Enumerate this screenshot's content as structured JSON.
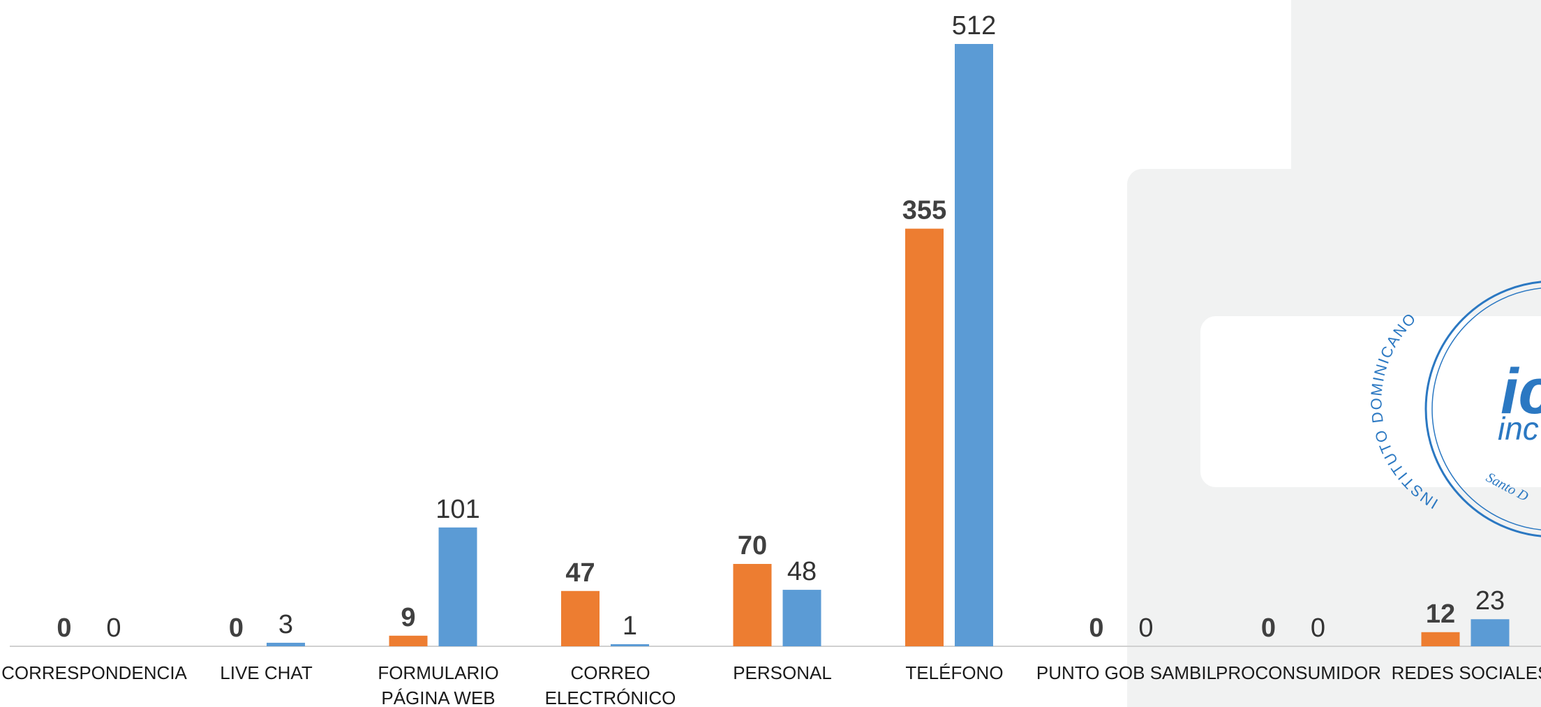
{
  "chart_data": {
    "type": "bar",
    "categories": [
      [
        "CORRESPONDENCIA"
      ],
      [
        "LIVE CHAT"
      ],
      [
        "FORMULARIO",
        "PÁGINA WEB"
      ],
      [
        "CORREO",
        "ELECTRÓNICO"
      ],
      [
        "PERSONAL"
      ],
      [
        "TELÉFONO"
      ],
      [
        "PUNTO GOB SAMBIL"
      ],
      [
        "PROCONSUMIDOR"
      ],
      [
        "REDES SOCIALES"
      ]
    ],
    "series": [
      {
        "color": "#ed7d31",
        "bold_labels": true,
        "values": [
          0,
          0,
          9,
          47,
          70,
          355,
          0,
          0,
          12
        ]
      },
      {
        "color": "#5b9bd5",
        "bold_labels": false,
        "values": [
          0,
          3,
          101,
          1,
          48,
          512,
          0,
          0,
          23
        ]
      }
    ],
    "ylim": [
      0,
      512
    ],
    "grid": false,
    "legend": "none"
  },
  "seal": {
    "text": "INSTITUTO DOMINICANO",
    "logo_text": "ic",
    "logo_sub": "inc",
    "place": "Santo D"
  }
}
